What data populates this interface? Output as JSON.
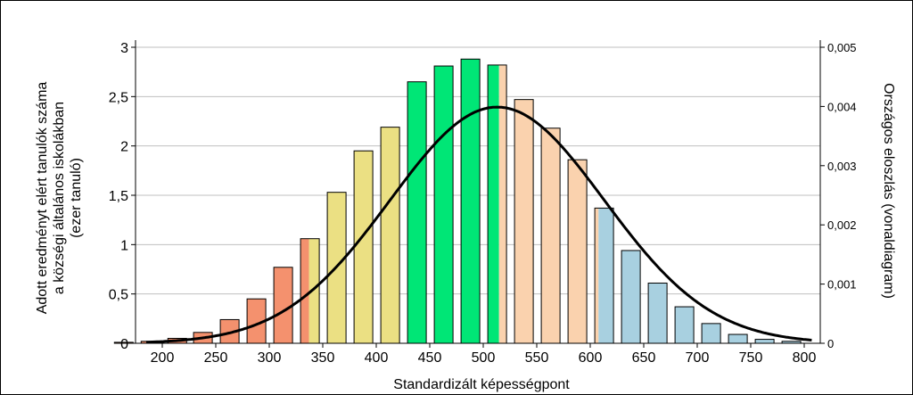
{
  "chart_data": {
    "type": "bar",
    "xlabel": "Standardizált képességpont",
    "ylabel_lines": [
      "Adott eredményt elért tanulók száma",
      "a községi általános iskolákban",
      "(ezer tanuló)"
    ],
    "y2label": "Országos eloszlás (vonaldiagram)",
    "xlim": [
      175,
      815
    ],
    "ylim": [
      0,
      3
    ],
    "y2lim": [
      0,
      0.005
    ],
    "x_ticks": [
      200,
      250,
      300,
      350,
      400,
      450,
      500,
      550,
      600,
      650,
      700,
      750,
      800
    ],
    "x_tick_labels": [
      "200",
      "250",
      "300",
      "350",
      "400",
      "450",
      "500",
      "550",
      "600",
      "650",
      "700",
      "750",
      "800"
    ],
    "y_ticks": [
      0,
      0.5,
      1,
      1.5,
      2,
      2.5,
      3
    ],
    "y_tick_labels": [
      "0",
      "0,5",
      "1",
      "1,5",
      "2",
      "2,5",
      "3"
    ],
    "y2_ticks": [
      0,
      0.001,
      0.002,
      0.003,
      0.004,
      0.005
    ],
    "y2_tick_labels": [
      "0",
      "0,001",
      "0,002",
      "0,003",
      "0,004",
      "0,005"
    ],
    "grid": true,
    "bar_width": 21,
    "bars": [
      {
        "x": 164,
        "value": 0.01,
        "color": "#F4916E"
      },
      {
        "x": 189,
        "value": 0.02,
        "color": "#F4916E"
      },
      {
        "x": 214,
        "value": 0.05,
        "color": "#F4916E"
      },
      {
        "x": 238,
        "value": 0.11,
        "color": "#F4916E"
      },
      {
        "x": 263,
        "value": 0.24,
        "color": "#F4916E"
      },
      {
        "x": 288,
        "value": 0.45,
        "color": "#F4916E"
      },
      {
        "x": 313,
        "value": 0.77,
        "color": "#F4916E"
      },
      {
        "x": 338,
        "value": 1.06,
        "color": "#F4916E",
        "split": 0.45,
        "color2": "#EBE083"
      },
      {
        "x": 363,
        "value": 1.53,
        "color": "#EBE083"
      },
      {
        "x": 388,
        "value": 1.95,
        "color": "#EBE083"
      },
      {
        "x": 413,
        "value": 2.19,
        "color": "#EBE083"
      },
      {
        "x": 438,
        "value": 2.65,
        "color": "#00E676"
      },
      {
        "x": 463,
        "value": 2.81,
        "color": "#00E676"
      },
      {
        "x": 488,
        "value": 2.88,
        "color": "#00E676"
      },
      {
        "x": 513,
        "value": 2.82,
        "color": "#00E676",
        "split": 0.6,
        "color2": "#FAD2AE"
      },
      {
        "x": 538,
        "value": 2.47,
        "color": "#FAD2AE"
      },
      {
        "x": 563,
        "value": 2.18,
        "color": "#FAD2AE"
      },
      {
        "x": 588,
        "value": 1.86,
        "color": "#FAD2AE"
      },
      {
        "x": 613,
        "value": 1.37,
        "color": "#FAD2AE",
        "split": 0.2,
        "color2": "#A8D0E0"
      },
      {
        "x": 638,
        "value": 0.94,
        "color": "#A8D0E0"
      },
      {
        "x": 663,
        "value": 0.61,
        "color": "#A8D0E0"
      },
      {
        "x": 688,
        "value": 0.37,
        "color": "#A8D0E0"
      },
      {
        "x": 713,
        "value": 0.2,
        "color": "#A8D0E0"
      },
      {
        "x": 738,
        "value": 0.09,
        "color": "#A8D0E0"
      },
      {
        "x": 763,
        "value": 0.04,
        "color": "#A8D0E0"
      },
      {
        "x": 788,
        "value": 0.02,
        "color": "#A8D0E0"
      }
    ],
    "line": {
      "distribution": "normal",
      "mean": 513,
      "sd": 100,
      "x_start": 185,
      "x_end": 807,
      "color": "#000000"
    }
  }
}
